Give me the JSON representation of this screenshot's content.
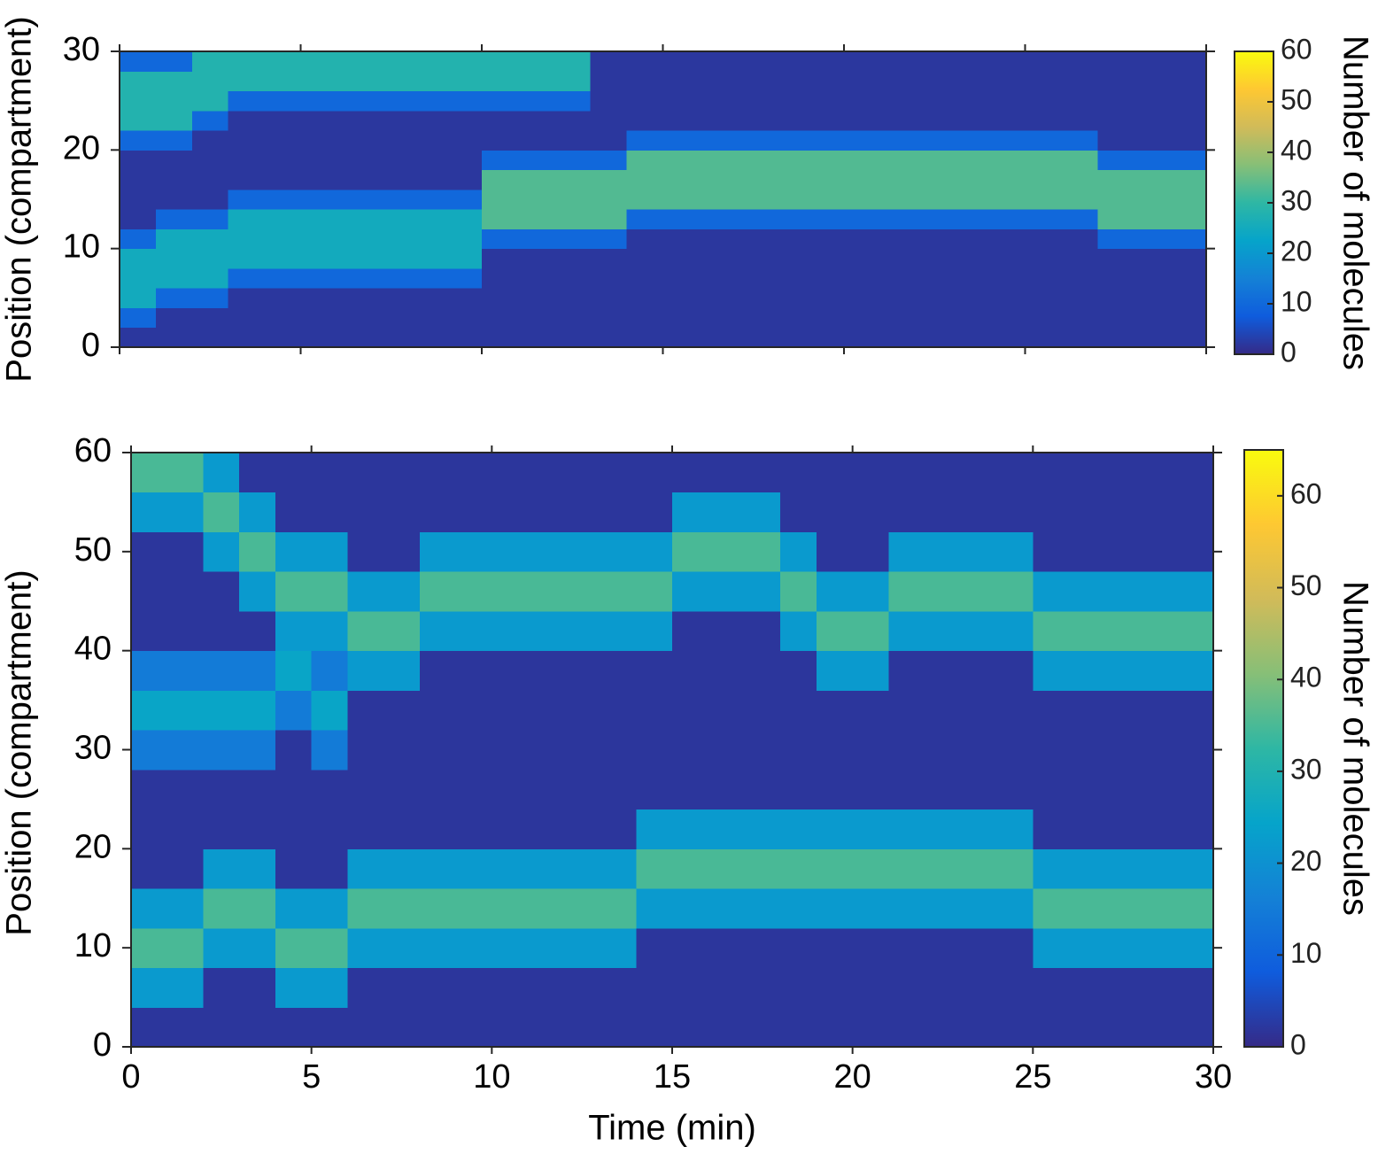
{
  "chart_data": [
    {
      "type": "heatmap",
      "ylabel": "Position (compartment)",
      "colorbar_label": "Number of molecules",
      "xlim": [
        0,
        30
      ],
      "xticks": [
        0,
        5,
        10,
        15,
        20,
        25,
        30
      ],
      "xticklabels": false,
      "ylim": [
        0,
        30
      ],
      "yticks": [
        0,
        10,
        20,
        30
      ],
      "clim": [
        0,
        60
      ],
      "cticks": [
        0,
        10,
        20,
        30,
        40,
        50,
        60
      ],
      "colormap": [
        "#352a87",
        "#0f5cdd",
        "#1481d6",
        "#06a4ca",
        "#2eb7a4",
        "#87bf77",
        "#d1bb59",
        "#fec832",
        "#f9fb0e"
      ],
      "xbins": [
        0,
        1,
        2,
        3,
        4,
        5,
        6,
        7,
        8,
        9,
        10,
        11,
        12,
        13,
        14,
        15,
        16,
        17,
        18,
        19,
        20,
        21,
        22,
        23,
        24,
        25,
        26,
        27,
        28,
        29,
        30
      ],
      "ybins": [
        0,
        2,
        4,
        6,
        8,
        10,
        12,
        14,
        16,
        18,
        20,
        22,
        24,
        26,
        28,
        30
      ],
      "values": [
        [
          2,
          2,
          2,
          2,
          2,
          2,
          2,
          2,
          2,
          2,
          2,
          2,
          2,
          2,
          2,
          2,
          2,
          2,
          2,
          2,
          2,
          2,
          2,
          2,
          2,
          2,
          2,
          2,
          2,
          2
        ],
        [
          10,
          2,
          2,
          2,
          2,
          2,
          2,
          2,
          2,
          2,
          2,
          2,
          2,
          2,
          2,
          2,
          2,
          2,
          2,
          2,
          2,
          2,
          2,
          2,
          2,
          2,
          2,
          2,
          2,
          2
        ],
        [
          25,
          10,
          10,
          2,
          2,
          2,
          2,
          2,
          2,
          2,
          2,
          2,
          2,
          2,
          2,
          2,
          2,
          2,
          2,
          2,
          2,
          2,
          2,
          2,
          2,
          2,
          2,
          2,
          2,
          2
        ],
        [
          25,
          25,
          25,
          10,
          10,
          10,
          10,
          10,
          10,
          10,
          2,
          2,
          2,
          2,
          2,
          2,
          2,
          2,
          2,
          2,
          2,
          2,
          2,
          2,
          2,
          2,
          2,
          2,
          2,
          2
        ],
        [
          25,
          25,
          25,
          25,
          25,
          25,
          25,
          25,
          25,
          25,
          2,
          2,
          2,
          2,
          2,
          2,
          2,
          2,
          2,
          2,
          2,
          2,
          2,
          2,
          2,
          2,
          2,
          2,
          2,
          2
        ],
        [
          10,
          25,
          25,
          25,
          25,
          25,
          25,
          25,
          25,
          25,
          10,
          10,
          10,
          10,
          2,
          2,
          2,
          2,
          2,
          2,
          2,
          2,
          2,
          2,
          2,
          2,
          2,
          10,
          10,
          10
        ],
        [
          2,
          10,
          10,
          25,
          25,
          25,
          25,
          25,
          25,
          25,
          33,
          33,
          33,
          33,
          10,
          10,
          10,
          10,
          10,
          10,
          10,
          10,
          10,
          10,
          10,
          10,
          10,
          33,
          33,
          33
        ],
        [
          2,
          2,
          2,
          10,
          10,
          10,
          10,
          10,
          10,
          10,
          33,
          33,
          33,
          33,
          33,
          33,
          33,
          33,
          33,
          33,
          33,
          33,
          33,
          33,
          33,
          33,
          33,
          33,
          33,
          33
        ],
        [
          2,
          2,
          2,
          2,
          2,
          2,
          2,
          2,
          2,
          2,
          33,
          33,
          33,
          33,
          33,
          33,
          33,
          33,
          33,
          33,
          33,
          33,
          33,
          33,
          33,
          33,
          33,
          33,
          33,
          33
        ],
        [
          2,
          2,
          2,
          2,
          2,
          2,
          2,
          2,
          2,
          2,
          10,
          10,
          10,
          10,
          33,
          33,
          33,
          33,
          33,
          33,
          33,
          33,
          33,
          33,
          33,
          33,
          33,
          10,
          10,
          10
        ],
        [
          10,
          10,
          2,
          2,
          2,
          2,
          2,
          2,
          2,
          2,
          2,
          2,
          2,
          2,
          10,
          10,
          10,
          10,
          10,
          10,
          10,
          10,
          10,
          10,
          10,
          10,
          10,
          2,
          2,
          2
        ],
        [
          28,
          28,
          10,
          2,
          2,
          2,
          2,
          2,
          2,
          2,
          2,
          2,
          2,
          2,
          2,
          2,
          2,
          2,
          2,
          2,
          2,
          2,
          2,
          2,
          2,
          2,
          2,
          2,
          2,
          2
        ],
        [
          28,
          28,
          28,
          10,
          10,
          10,
          10,
          10,
          10,
          10,
          10,
          10,
          10,
          2,
          2,
          2,
          2,
          2,
          2,
          2,
          2,
          2,
          2,
          2,
          2,
          2,
          2,
          2,
          2,
          2
        ],
        [
          28,
          28,
          28,
          28,
          28,
          28,
          28,
          28,
          28,
          28,
          28,
          28,
          28,
          2,
          2,
          2,
          2,
          2,
          2,
          2,
          2,
          2,
          2,
          2,
          2,
          2,
          2,
          2,
          2,
          2
        ],
        [
          10,
          10,
          28,
          28,
          28,
          28,
          28,
          28,
          28,
          28,
          28,
          28,
          28,
          2,
          2,
          2,
          2,
          2,
          2,
          2,
          2,
          2,
          2,
          2,
          2,
          2,
          2,
          2,
          2,
          2
        ]
      ]
    },
    {
      "type": "heatmap",
      "xlabel": "Time (min)",
      "ylabel": "Position (compartment)",
      "colorbar_label": "Number of molecules",
      "xlim": [
        0,
        30
      ],
      "xticks": [
        0,
        5,
        10,
        15,
        20,
        25,
        30
      ],
      "xticklabels": true,
      "ylim": [
        0,
        60
      ],
      "yticks": [
        0,
        10,
        20,
        30,
        40,
        50,
        60
      ],
      "clim": [
        0,
        65
      ],
      "cticks": [
        0,
        10,
        20,
        30,
        40,
        50,
        60
      ],
      "colormap": [
        "#352a87",
        "#0f5cdd",
        "#1481d6",
        "#06a4ca",
        "#2eb7a4",
        "#87bf77",
        "#d1bb59",
        "#fec832",
        "#f9fb0e"
      ],
      "xbins": [
        0,
        1,
        2,
        3,
        4,
        5,
        6,
        7,
        8,
        9,
        10,
        11,
        12,
        13,
        14,
        15,
        16,
        17,
        18,
        19,
        20,
        21,
        22,
        23,
        24,
        25,
        26,
        27,
        28,
        29,
        30
      ],
      "ybins": [
        0,
        4,
        8,
        12,
        16,
        20,
        24,
        28,
        32,
        36,
        40,
        44,
        48,
        52,
        56,
        60
      ],
      "values": [
        [
          2,
          2,
          2,
          2,
          2,
          2,
          2,
          2,
          2,
          2,
          2,
          2,
          2,
          2,
          2,
          2,
          2,
          2,
          2,
          2,
          2,
          2,
          2,
          2,
          2,
          2,
          2,
          2,
          2,
          2
        ],
        [
          22,
          22,
          2,
          2,
          22,
          22,
          2,
          2,
          2,
          2,
          2,
          2,
          2,
          2,
          2,
          2,
          2,
          2,
          2,
          2,
          2,
          2,
          2,
          2,
          2,
          2,
          2,
          2,
          2,
          2
        ],
        [
          35,
          35,
          22,
          22,
          35,
          35,
          22,
          22,
          22,
          22,
          22,
          22,
          22,
          22,
          2,
          2,
          2,
          2,
          2,
          2,
          2,
          2,
          2,
          2,
          2,
          22,
          22,
          22,
          22,
          22
        ],
        [
          22,
          22,
          35,
          35,
          22,
          22,
          35,
          35,
          35,
          35,
          35,
          35,
          35,
          35,
          22,
          22,
          22,
          22,
          22,
          22,
          22,
          22,
          22,
          22,
          22,
          35,
          35,
          35,
          35,
          35
        ],
        [
          2,
          2,
          22,
          22,
          2,
          2,
          22,
          22,
          22,
          22,
          22,
          22,
          22,
          22,
          35,
          35,
          35,
          35,
          35,
          35,
          35,
          35,
          35,
          35,
          35,
          22,
          22,
          22,
          22,
          22
        ],
        [
          2,
          2,
          2,
          2,
          2,
          2,
          2,
          2,
          2,
          2,
          2,
          2,
          2,
          2,
          22,
          22,
          22,
          22,
          22,
          22,
          22,
          22,
          22,
          22,
          22,
          2,
          2,
          2,
          2,
          2
        ],
        [
          2,
          2,
          2,
          2,
          2,
          2,
          2,
          2,
          2,
          2,
          2,
          2,
          2,
          2,
          2,
          2,
          2,
          2,
          2,
          2,
          2,
          2,
          2,
          2,
          2,
          2,
          2,
          2,
          2,
          2
        ],
        [
          15,
          15,
          15,
          15,
          2,
          15,
          2,
          2,
          2,
          2,
          2,
          2,
          2,
          2,
          2,
          2,
          2,
          2,
          2,
          2,
          2,
          2,
          2,
          2,
          2,
          2,
          2,
          2,
          2,
          2
        ],
        [
          25,
          25,
          25,
          25,
          15,
          25,
          2,
          2,
          2,
          2,
          2,
          2,
          2,
          2,
          2,
          2,
          2,
          2,
          2,
          2,
          2,
          2,
          2,
          2,
          2,
          2,
          2,
          2,
          2,
          2
        ],
        [
          15,
          15,
          15,
          15,
          25,
          15,
          22,
          22,
          2,
          2,
          2,
          2,
          2,
          2,
          2,
          2,
          2,
          2,
          2,
          22,
          22,
          2,
          2,
          2,
          2,
          22,
          22,
          22,
          22,
          22
        ],
        [
          2,
          2,
          2,
          2,
          22,
          22,
          35,
          35,
          22,
          22,
          22,
          22,
          22,
          22,
          22,
          2,
          2,
          2,
          22,
          35,
          35,
          22,
          22,
          22,
          22,
          35,
          35,
          35,
          35,
          35
        ],
        [
          2,
          2,
          2,
          22,
          35,
          35,
          22,
          22,
          35,
          35,
          35,
          35,
          35,
          35,
          35,
          22,
          22,
          22,
          35,
          22,
          22,
          35,
          35,
          35,
          35,
          22,
          22,
          22,
          22,
          22
        ],
        [
          2,
          2,
          22,
          35,
          22,
          22,
          2,
          2,
          22,
          22,
          22,
          22,
          22,
          22,
          22,
          35,
          35,
          35,
          22,
          2,
          2,
          22,
          22,
          22,
          22,
          2,
          2,
          2,
          2,
          2
        ],
        [
          22,
          22,
          35,
          22,
          2,
          2,
          2,
          2,
          2,
          2,
          2,
          2,
          2,
          2,
          2,
          22,
          22,
          22,
          2,
          2,
          2,
          2,
          2,
          2,
          2,
          2,
          2,
          2,
          2,
          2
        ],
        [
          35,
          35,
          22,
          2,
          2,
          2,
          2,
          2,
          2,
          2,
          2,
          2,
          2,
          2,
          2,
          2,
          2,
          2,
          2,
          2,
          2,
          2,
          2,
          2,
          2,
          2,
          2,
          2,
          2,
          2
        ]
      ]
    }
  ]
}
